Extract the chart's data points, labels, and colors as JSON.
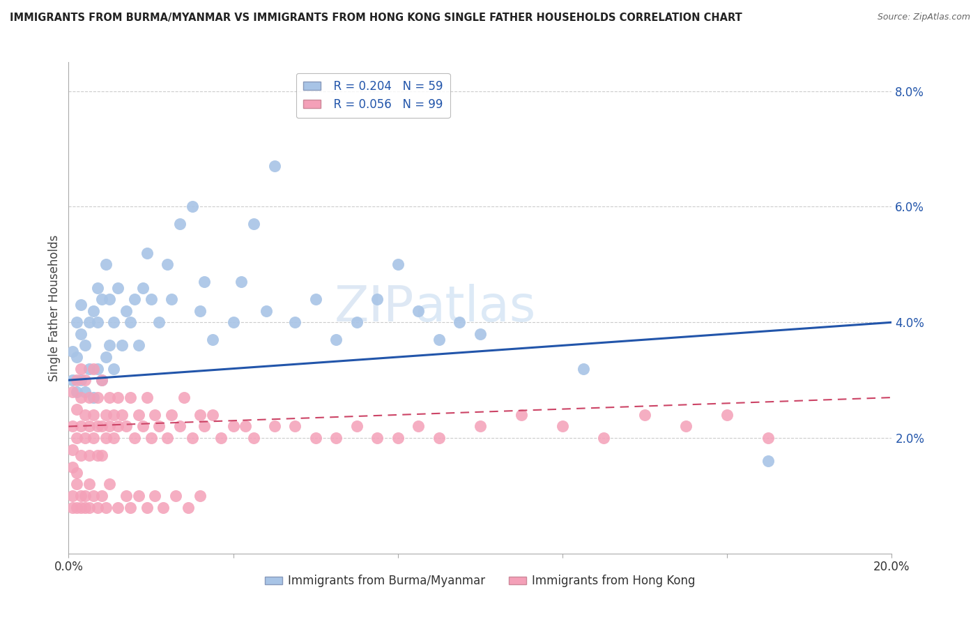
{
  "title": "IMMIGRANTS FROM BURMA/MYANMAR VS IMMIGRANTS FROM HONG KONG SINGLE FATHER HOUSEHOLDS CORRELATION CHART",
  "source": "Source: ZipAtlas.com",
  "ylabel": "Single Father Households",
  "xlim": [
    0.0,
    0.2
  ],
  "ylim": [
    0.0,
    0.085
  ],
  "blue_R": 0.204,
  "blue_N": 59,
  "pink_R": 0.056,
  "pink_N": 99,
  "blue_label": "Immigrants from Burma/Myanmar",
  "pink_label": "Immigrants from Hong Kong",
  "blue_color": "#a8c4e6",
  "pink_color": "#f4a0b8",
  "blue_line_color": "#2255aa",
  "pink_line_color": "#cc4466",
  "watermark_zip": "ZIP",
  "watermark_atlas": "atlas",
  "background_color": "#ffffff",
  "blue_x": [
    0.001,
    0.001,
    0.002,
    0.002,
    0.002,
    0.003,
    0.003,
    0.003,
    0.004,
    0.004,
    0.005,
    0.005,
    0.006,
    0.006,
    0.007,
    0.007,
    0.007,
    0.008,
    0.008,
    0.009,
    0.009,
    0.01,
    0.01,
    0.011,
    0.011,
    0.012,
    0.013,
    0.014,
    0.015,
    0.016,
    0.017,
    0.018,
    0.019,
    0.02,
    0.022,
    0.024,
    0.025,
    0.027,
    0.03,
    0.032,
    0.033,
    0.035,
    0.04,
    0.042,
    0.045,
    0.048,
    0.05,
    0.055,
    0.06,
    0.065,
    0.07,
    0.075,
    0.08,
    0.085,
    0.09,
    0.095,
    0.1,
    0.125,
    0.17
  ],
  "blue_y": [
    0.03,
    0.035,
    0.028,
    0.034,
    0.04,
    0.03,
    0.038,
    0.043,
    0.028,
    0.036,
    0.032,
    0.04,
    0.027,
    0.042,
    0.032,
    0.04,
    0.046,
    0.03,
    0.044,
    0.034,
    0.05,
    0.036,
    0.044,
    0.032,
    0.04,
    0.046,
    0.036,
    0.042,
    0.04,
    0.044,
    0.036,
    0.046,
    0.052,
    0.044,
    0.04,
    0.05,
    0.044,
    0.057,
    0.06,
    0.042,
    0.047,
    0.037,
    0.04,
    0.047,
    0.057,
    0.042,
    0.067,
    0.04,
    0.044,
    0.037,
    0.04,
    0.044,
    0.05,
    0.042,
    0.037,
    0.04,
    0.038,
    0.032,
    0.016
  ],
  "pink_x": [
    0.001,
    0.001,
    0.001,
    0.001,
    0.002,
    0.002,
    0.002,
    0.002,
    0.003,
    0.003,
    0.003,
    0.003,
    0.004,
    0.004,
    0.004,
    0.005,
    0.005,
    0.005,
    0.006,
    0.006,
    0.006,
    0.007,
    0.007,
    0.007,
    0.008,
    0.008,
    0.008,
    0.009,
    0.009,
    0.01,
    0.01,
    0.011,
    0.011,
    0.012,
    0.012,
    0.013,
    0.014,
    0.015,
    0.016,
    0.017,
    0.018,
    0.019,
    0.02,
    0.021,
    0.022,
    0.024,
    0.025,
    0.027,
    0.028,
    0.03,
    0.032,
    0.033,
    0.035,
    0.037,
    0.04,
    0.043,
    0.045,
    0.05,
    0.055,
    0.06,
    0.065,
    0.07,
    0.075,
    0.08,
    0.085,
    0.09,
    0.1,
    0.11,
    0.12,
    0.13,
    0.14,
    0.15,
    0.16,
    0.17,
    0.001,
    0.001,
    0.002,
    0.002,
    0.003,
    0.003,
    0.004,
    0.004,
    0.005,
    0.005,
    0.006,
    0.007,
    0.008,
    0.009,
    0.01,
    0.012,
    0.014,
    0.015,
    0.017,
    0.019,
    0.021,
    0.023,
    0.026,
    0.029,
    0.032
  ],
  "pink_y": [
    0.028,
    0.022,
    0.018,
    0.015,
    0.025,
    0.02,
    0.03,
    0.014,
    0.027,
    0.022,
    0.032,
    0.017,
    0.024,
    0.02,
    0.03,
    0.022,
    0.027,
    0.017,
    0.024,
    0.02,
    0.032,
    0.022,
    0.027,
    0.017,
    0.022,
    0.03,
    0.017,
    0.024,
    0.02,
    0.027,
    0.022,
    0.024,
    0.02,
    0.027,
    0.022,
    0.024,
    0.022,
    0.027,
    0.02,
    0.024,
    0.022,
    0.027,
    0.02,
    0.024,
    0.022,
    0.02,
    0.024,
    0.022,
    0.027,
    0.02,
    0.024,
    0.022,
    0.024,
    0.02,
    0.022,
    0.022,
    0.02,
    0.022,
    0.022,
    0.02,
    0.02,
    0.022,
    0.02,
    0.02,
    0.022,
    0.02,
    0.022,
    0.024,
    0.022,
    0.02,
    0.024,
    0.022,
    0.024,
    0.02,
    0.01,
    0.008,
    0.012,
    0.008,
    0.01,
    0.008,
    0.01,
    0.008,
    0.012,
    0.008,
    0.01,
    0.008,
    0.01,
    0.008,
    0.012,
    0.008,
    0.01,
    0.008,
    0.01,
    0.008,
    0.01,
    0.008,
    0.01,
    0.008,
    0.01
  ]
}
